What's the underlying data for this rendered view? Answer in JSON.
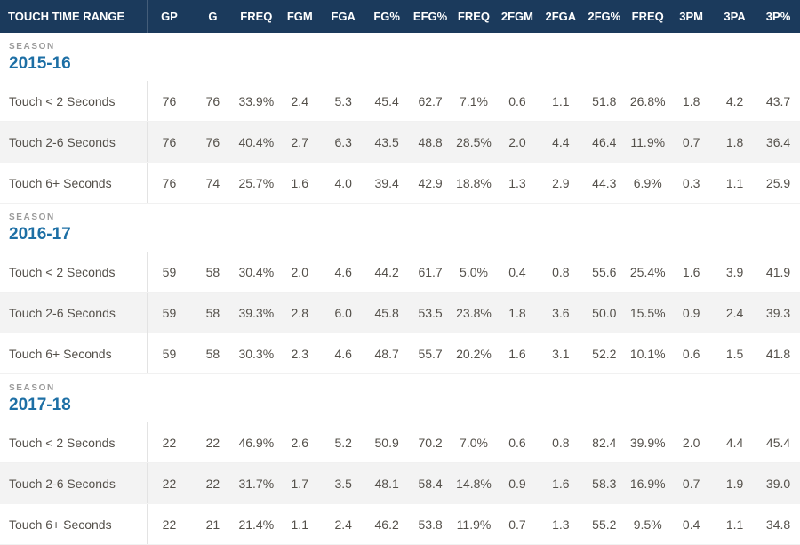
{
  "header": {
    "columns": [
      "TOUCH TIME RANGE",
      "GP",
      "G",
      "FREQ",
      "FGM",
      "FGA",
      "FG%",
      "EFG%",
      "FREQ",
      "2FGM",
      "2FGA",
      "2FG%",
      "FREQ",
      "3PM",
      "3PA",
      "3P%"
    ]
  },
  "seasons": [
    {
      "tag": "SEASON",
      "year": "2015-16",
      "rows": [
        {
          "name": "Touch < 2 Seconds",
          "values": [
            "76",
            "76",
            "33.9%",
            "2.4",
            "5.3",
            "45.4",
            "62.7",
            "7.1%",
            "0.6",
            "1.1",
            "51.8",
            "26.8%",
            "1.8",
            "4.2",
            "43.7"
          ]
        },
        {
          "name": "Touch 2-6 Seconds",
          "values": [
            "76",
            "76",
            "40.4%",
            "2.7",
            "6.3",
            "43.5",
            "48.8",
            "28.5%",
            "2.0",
            "4.4",
            "46.4",
            "11.9%",
            "0.7",
            "1.8",
            "36.4"
          ]
        },
        {
          "name": "Touch 6+ Seconds",
          "values": [
            "76",
            "74",
            "25.7%",
            "1.6",
            "4.0",
            "39.4",
            "42.9",
            "18.8%",
            "1.3",
            "2.9",
            "44.3",
            "6.9%",
            "0.3",
            "1.1",
            "25.9"
          ]
        }
      ]
    },
    {
      "tag": "SEASON",
      "year": "2016-17",
      "rows": [
        {
          "name": "Touch < 2 Seconds",
          "values": [
            "59",
            "58",
            "30.4%",
            "2.0",
            "4.6",
            "44.2",
            "61.7",
            "5.0%",
            "0.4",
            "0.8",
            "55.6",
            "25.4%",
            "1.6",
            "3.9",
            "41.9"
          ]
        },
        {
          "name": "Touch 2-6 Seconds",
          "values": [
            "59",
            "58",
            "39.3%",
            "2.8",
            "6.0",
            "45.8",
            "53.5",
            "23.8%",
            "1.8",
            "3.6",
            "50.0",
            "15.5%",
            "0.9",
            "2.4",
            "39.3"
          ]
        },
        {
          "name": "Touch 6+ Seconds",
          "values": [
            "59",
            "58",
            "30.3%",
            "2.3",
            "4.6",
            "48.7",
            "55.7",
            "20.2%",
            "1.6",
            "3.1",
            "52.2",
            "10.1%",
            "0.6",
            "1.5",
            "41.8"
          ]
        }
      ]
    },
    {
      "tag": "SEASON",
      "year": "2017-18",
      "rows": [
        {
          "name": "Touch < 2 Seconds",
          "values": [
            "22",
            "22",
            "46.9%",
            "2.6",
            "5.2",
            "50.9",
            "70.2",
            "7.0%",
            "0.6",
            "0.8",
            "82.4",
            "39.9%",
            "2.0",
            "4.4",
            "45.4"
          ]
        },
        {
          "name": "Touch 2-6 Seconds",
          "values": [
            "22",
            "22",
            "31.7%",
            "1.7",
            "3.5",
            "48.1",
            "58.4",
            "14.8%",
            "0.9",
            "1.6",
            "58.3",
            "16.9%",
            "0.7",
            "1.9",
            "39.0"
          ]
        },
        {
          "name": "Touch 6+ Seconds",
          "values": [
            "22",
            "21",
            "21.4%",
            "1.1",
            "2.4",
            "46.2",
            "53.8",
            "11.9%",
            "0.7",
            "1.3",
            "55.2",
            "9.5%",
            "0.4",
            "1.1",
            "34.8"
          ]
        }
      ]
    }
  ],
  "colors": {
    "header_bg": "#1b3a5c",
    "header_text": "#ffffff",
    "season_year": "#1d6fa5",
    "season_tag": "#9a9a9a",
    "row_alt_bg": "#f3f3f3",
    "data_text": "#54504a"
  }
}
